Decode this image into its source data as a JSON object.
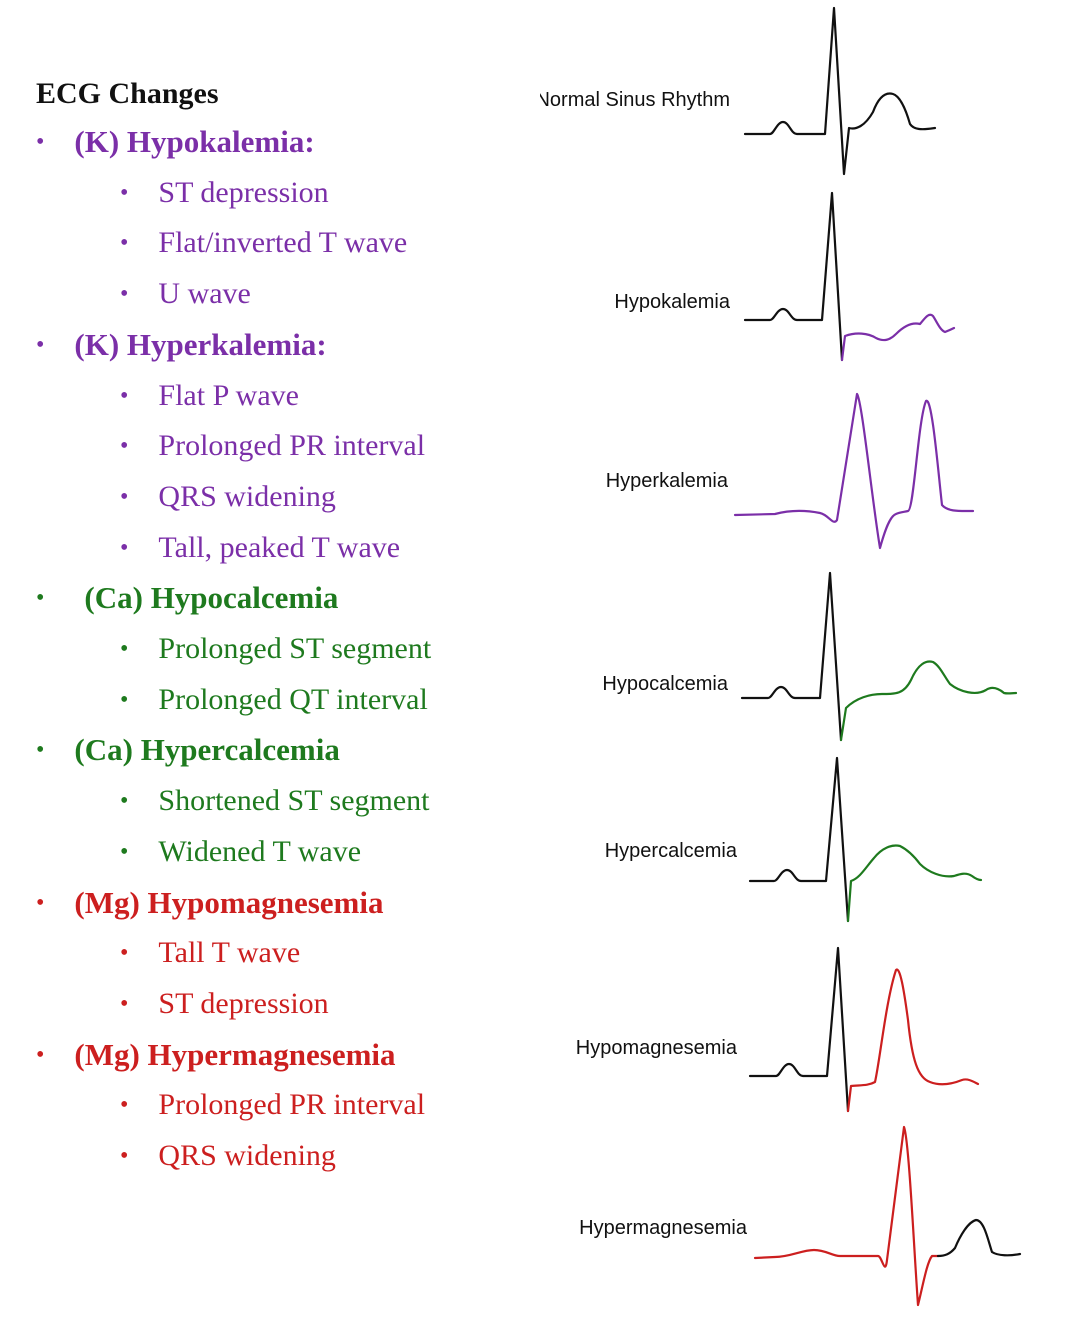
{
  "title": "ECG Changes",
  "colors": {
    "title": "#111111",
    "potassium": "#7b2fa8",
    "calcium": "#1e7a1e",
    "magnesium": "#cc1f1f",
    "baseline": "#111111"
  },
  "sections": [
    {
      "id": "hypokalemia",
      "heading": "(K) Hypokalemia:",
      "color_key": "potassium",
      "items": [
        "ST depression",
        "Flat/inverted T wave",
        "U wave"
      ]
    },
    {
      "id": "hyperkalemia",
      "heading": "(K) Hyperkalemia:",
      "color_key": "potassium",
      "items": [
        "Flat P wave",
        "Prolonged PR interval",
        "QRS widening",
        "Tall, peaked T wave"
      ]
    },
    {
      "id": "hypocalcemia",
      "heading": "(Ca) Hypocalcemia",
      "color_key": "calcium",
      "items": [
        "Prolonged ST segment",
        "Prolonged QT interval"
      ]
    },
    {
      "id": "hypercalcemia",
      "heading": "(Ca) Hypercalcemia",
      "color_key": "calcium",
      "items": [
        "Shortened ST segment",
        "Widened T wave"
      ]
    },
    {
      "id": "hypomagnesemia",
      "heading": "(Mg) Hypomagnesemia",
      "color_key": "magnesium",
      "items": [
        "Tall T wave",
        "ST depression"
      ]
    },
    {
      "id": "hypermagnesemia",
      "heading": "(Mg) Hypermagnesemia",
      "color_key": "magnesium",
      "items": [
        "Prolonged PR interval",
        "QRS widening"
      ]
    }
  ],
  "traces": [
    {
      "id": "normal",
      "label": "Normal Sinus Rhythm",
      "color_key": "baseline"
    },
    {
      "id": "hypokalemia",
      "label": "Hypokalemia",
      "color_key": "potassium"
    },
    {
      "id": "hyperkalemia",
      "label": "Hyperkalemia",
      "color_key": "potassium"
    },
    {
      "id": "hypocalcemia",
      "label": "Hypocalcemia",
      "color_key": "calcium"
    },
    {
      "id": "hypercalcemia",
      "label": "Hypercalcemia",
      "color_key": "calcium"
    },
    {
      "id": "hypomagnesemia",
      "label": "Hypomagnesemia",
      "color_key": "magnesium"
    },
    {
      "id": "hypermagnesemia",
      "label": "Hypermagnesemia",
      "color_key": "magnesium"
    }
  ]
}
